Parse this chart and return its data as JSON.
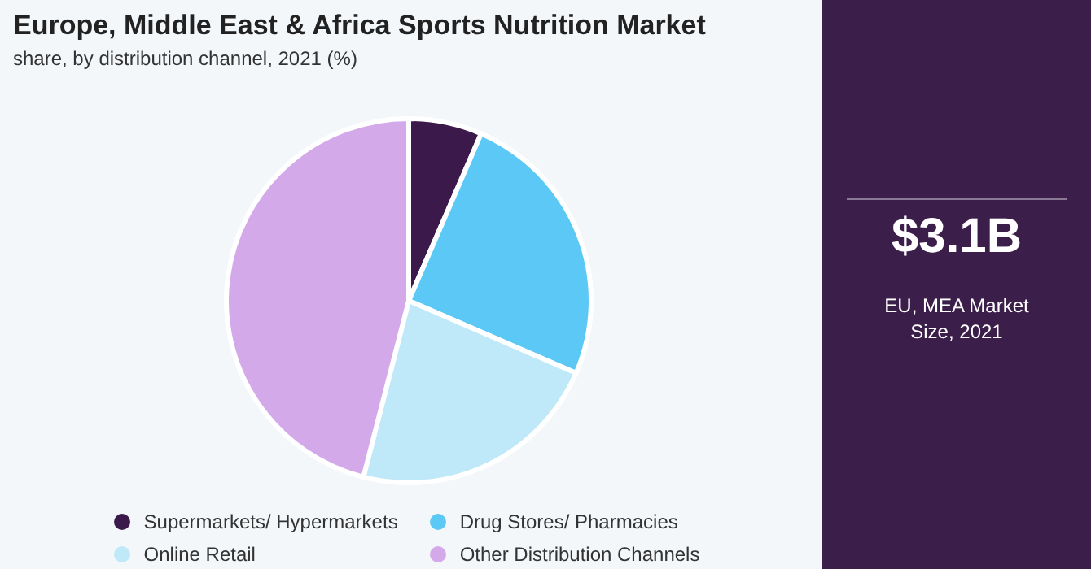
{
  "chart_data": {
    "type": "pie",
    "title": "Europe, Middle East & Africa Sports Nutrition Market",
    "subtitle": "share, by distribution channel, 2021 (%)",
    "categories": [
      "Supermarkets/ Hypermarkets",
      "Drug Stores/ Pharmacies",
      "Online Retail",
      "Other Distribution Channels"
    ],
    "values": [
      6.5,
      25,
      22.5,
      46
    ],
    "colors": [
      "#3b1a4b",
      "#5bc8f5",
      "#bfe8f8",
      "#d4a9ea"
    ],
    "legend": "bottom",
    "annotations": [
      "$3.1B",
      "EU, MEA Market Size, 2021"
    ]
  }
}
